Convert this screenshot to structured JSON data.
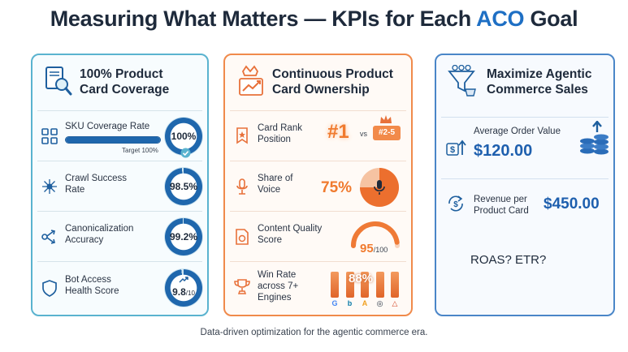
{
  "title": {
    "main": "Measuring What Matters — KPIs for Each",
    "accent": "ACO",
    "tail": "Goal"
  },
  "cards": {
    "coverage": {
      "title": [
        "100% Product",
        "Card Coverage"
      ],
      "icon": "search-document-icon",
      "rows": [
        {
          "label": "SKU Coverage Rate",
          "value": "100%",
          "level": 100,
          "bar_caption": "Target 100%",
          "icon": "grid-icon",
          "badge_icon": "check-circle-icon"
        },
        {
          "label": [
            "Crawl Success",
            "Rate"
          ],
          "value": "98.5%",
          "level": 98.5,
          "icon": "spider-icon"
        },
        {
          "label": [
            "Canonicalization",
            "Accuracy"
          ],
          "value": "99.2%",
          "level": 99.2,
          "icon": "share-icon"
        },
        {
          "label": [
            "Bot Access",
            "Health Score"
          ],
          "value": "9.8",
          "value_unit": "/10",
          "level": 98,
          "icon": "shield-icon",
          "badge_icon": "trend-up-icon"
        }
      ]
    },
    "ownership": {
      "title": [
        "Continuous Product",
        "Card Ownership"
      ],
      "icon": "crown-chart-icon",
      "rows": [
        {
          "label": [
            "Card Rank",
            "Position"
          ],
          "rank": "#1",
          "vs": "vs",
          "other_rank": "#2-5",
          "icon": "star-bookmark-icon"
        },
        {
          "label": [
            "Share of",
            "Voice"
          ],
          "value": "75%",
          "level": 75,
          "icon": "microphone-icon"
        },
        {
          "label": [
            "Content Quality",
            "Score"
          ],
          "value": "95",
          "value_unit": "/100",
          "level": 95,
          "icon": "document-gear-icon"
        },
        {
          "label": [
            "Win Rate",
            "across 7+",
            "Engines"
          ],
          "value": "88%",
          "level": 88,
          "icon": "trophy-icon",
          "engines": [
            "G",
            "b",
            "A",
            "◎",
            "△"
          ]
        }
      ]
    },
    "sales": {
      "title": [
        "Maximize Agentic",
        "Commerce Sales"
      ],
      "icon": "funnel-cart-icon",
      "rows": [
        {
          "label": "Average Order Value",
          "value": "$120.00",
          "icon": "dollar-up-icon",
          "side_icon": "coin-stack-icon"
        },
        {
          "label": [
            "Revenue per",
            "Product Card"
          ],
          "value": "$450.00",
          "icon": "dollar-cycle-icon"
        }
      ],
      "note": "ROAS? ETR?"
    }
  },
  "footer": "Data-driven optimization for the agentic commerce era.",
  "colors": {
    "navy": "#1e2a3b",
    "blue": "#1e6fc4",
    "teal": "#5ab3cf",
    "orange": "#f08a4b",
    "ring_blue": "#1f67ad"
  }
}
